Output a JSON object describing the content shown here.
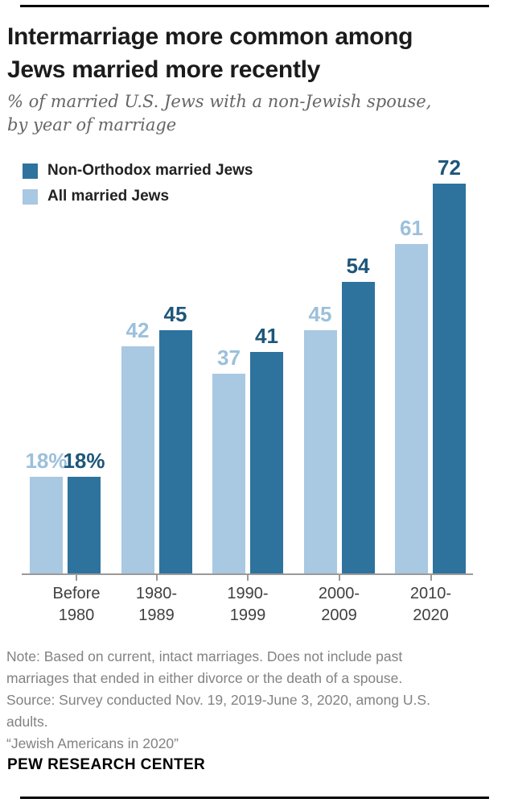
{
  "header": {
    "title_lines": [
      "Intermarriage more common among",
      "Jews married more recently"
    ],
    "subtitle_lines": [
      "% of married U.S. Jews with a non-Jewish spouse,",
      "by year of marriage"
    ]
  },
  "legend": {
    "items": [
      {
        "label": "Non-Orthodox married Jews",
        "color": "#2d739e"
      },
      {
        "label": "All married Jews",
        "color": "#a9c8e1"
      }
    ]
  },
  "chart_data": {
    "type": "bar",
    "title": "Intermarriage more common among Jews married more recently",
    "subtitle": "% of married U.S. Jews with a non-Jewish spouse, by year of marriage",
    "categories": [
      "Before 1980",
      "1980-1989",
      "1990-1999",
      "2000-2009",
      "2010-2020"
    ],
    "category_label_lines": [
      [
        "Before",
        "1980"
      ],
      [
        "1980-",
        "1989"
      ],
      [
        "1990-",
        "1999"
      ],
      [
        "2000-",
        "2009"
      ],
      [
        "2010-",
        "2020"
      ]
    ],
    "series": [
      {
        "name": "All married Jews",
        "color": "#a9c8e1",
        "label_color": "#9cc0db",
        "values": [
          18,
          42,
          37,
          45,
          61
        ],
        "value_labels": [
          "18%",
          "42",
          "37",
          "45",
          "61"
        ]
      },
      {
        "name": "Non-Orthodox married Jews",
        "color": "#2d739e",
        "label_color": "#1e567a",
        "values": [
          18,
          45,
          41,
          54,
          72
        ],
        "value_labels": [
          "18%",
          "45",
          "41",
          "54",
          "72"
        ]
      }
    ],
    "ylim": [
      0,
      72
    ],
    "grid": false,
    "legend_position": "top-left",
    "axis_color": "#9a9a9a"
  },
  "footer": {
    "note_lines": [
      "Note: Based on current, intact marriages. Does not include past",
      "marriages that ended in either divorce or the death of a spouse.",
      "Source: Survey conducted Nov. 19, 2019-June 3, 2020, among U.S.",
      "adults.",
      "“Jewish Americans in 2020”"
    ],
    "brand": "PEW RESEARCH CENTER"
  }
}
